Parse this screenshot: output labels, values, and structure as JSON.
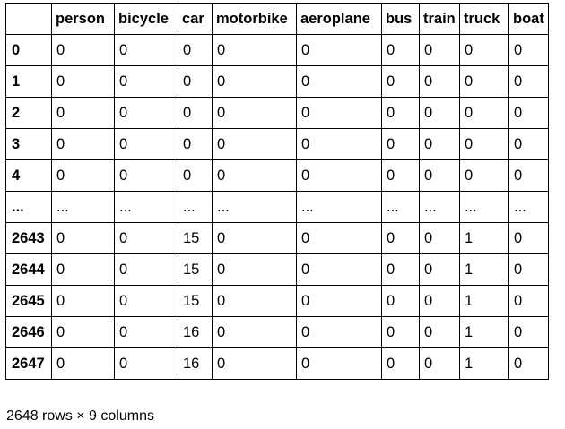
{
  "table": {
    "index_header": "",
    "columns": [
      "person",
      "bicycle",
      "car",
      "motorbike",
      "aeroplane",
      "bus",
      "train",
      "truck",
      "boat"
    ],
    "rows": [
      {
        "index": "0",
        "values": [
          "0",
          "0",
          "0",
          "0",
          "0",
          "0",
          "0",
          "0",
          "0"
        ]
      },
      {
        "index": "1",
        "values": [
          "0",
          "0",
          "0",
          "0",
          "0",
          "0",
          "0",
          "0",
          "0"
        ]
      },
      {
        "index": "2",
        "values": [
          "0",
          "0",
          "0",
          "0",
          "0",
          "0",
          "0",
          "0",
          "0"
        ]
      },
      {
        "index": "3",
        "values": [
          "0",
          "0",
          "0",
          "0",
          "0",
          "0",
          "0",
          "0",
          "0"
        ]
      },
      {
        "index": "4",
        "values": [
          "0",
          "0",
          "0",
          "0",
          "0",
          "0",
          "0",
          "0",
          "0"
        ]
      },
      {
        "index": "...",
        "values": [
          "...",
          "...",
          "...",
          "...",
          "...",
          "...",
          "...",
          "...",
          "..."
        ]
      },
      {
        "index": "2643",
        "values": [
          "0",
          "0",
          "15",
          "0",
          "0",
          "0",
          "0",
          "1",
          "0"
        ]
      },
      {
        "index": "2644",
        "values": [
          "0",
          "0",
          "15",
          "0",
          "0",
          "0",
          "0",
          "1",
          "0"
        ]
      },
      {
        "index": "2645",
        "values": [
          "0",
          "0",
          "15",
          "0",
          "0",
          "0",
          "0",
          "1",
          "0"
        ]
      },
      {
        "index": "2646",
        "values": [
          "0",
          "0",
          "16",
          "0",
          "0",
          "0",
          "0",
          "1",
          "0"
        ]
      },
      {
        "index": "2647",
        "values": [
          "0",
          "0",
          "16",
          "0",
          "0",
          "0",
          "0",
          "1",
          "0"
        ]
      }
    ]
  },
  "footer": {
    "shape_text": "2648 rows × 9 columns"
  }
}
